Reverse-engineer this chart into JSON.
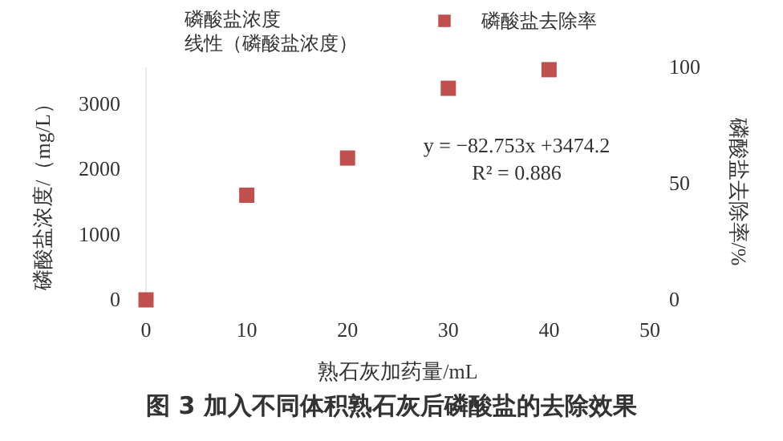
{
  "chart_data": {
    "type": "scatter",
    "title": "图 3  加入不同体积熟石灰后磷酸盐的去除效果",
    "xlabel": "熟石灰加药量/mL",
    "ylabel": "磷酸盐浓度/（mg/L）",
    "y2label": "磷酸盐去除率/%",
    "x": [
      0,
      10,
      20,
      30,
      40
    ],
    "series": [
      {
        "name": "磷酸盐去除率",
        "color": "#c0504d",
        "axis": "y2",
        "values": [
          0,
          45,
          61,
          91,
          99
        ]
      }
    ],
    "xlim": [
      0,
      50
    ],
    "xticks": [
      0,
      10,
      20,
      30,
      40,
      50
    ],
    "ylim": [
      0,
      3560
    ],
    "yticks": [
      0,
      1000,
      2000,
      3000
    ],
    "y2lim": [
      0,
      100
    ],
    "y2ticks": [
      0,
      50,
      100
    ],
    "marker": "square",
    "legend": "top",
    "grid": false,
    "annotations": [
      "磷酸盐浓度",
      "线性（磷酸盐浓度）",
      "y = −82.753x +3474.2",
      "R² = 0.886"
    ]
  }
}
